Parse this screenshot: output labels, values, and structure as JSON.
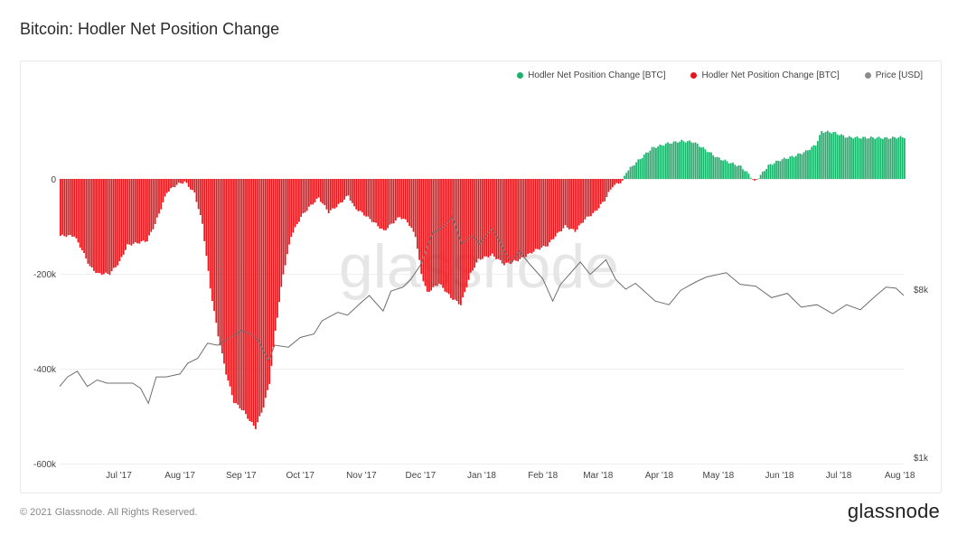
{
  "title": "Bitcoin: Hodler Net Position Change",
  "legend": {
    "positive": {
      "label": "Hodler Net Position Change [BTC]",
      "color": "#1bb36c"
    },
    "negative": {
      "label": "Hodler Net Position Change [BTC]",
      "color": "#e8151b"
    },
    "price": {
      "label": "Price [USD]",
      "color": "#8c8c8c"
    }
  },
  "watermark": "glassnode",
  "footer": "© 2021 Glassnode. All Rights Reserved.",
  "brand": "glassnode",
  "chart_data": {
    "type": "bar",
    "x_start": "2017-06-01",
    "x_end": "2018-08-03",
    "x_ticks": [
      {
        "label": "Jul '17",
        "date": "2017-07-01"
      },
      {
        "label": "Aug '17",
        "date": "2017-08-01"
      },
      {
        "label": "Sep '17",
        "date": "2017-09-01"
      },
      {
        "label": "Oct '17",
        "date": "2017-10-01"
      },
      {
        "label": "Nov '17",
        "date": "2017-11-01"
      },
      {
        "label": "Dec '17",
        "date": "2017-12-01"
      },
      {
        "label": "Jan '18",
        "date": "2018-01-01"
      },
      {
        "label": "Feb '18",
        "date": "2018-02-01"
      },
      {
        "label": "Mar '18",
        "date": "2018-03-01"
      },
      {
        "label": "Apr '18",
        "date": "2018-04-01"
      },
      {
        "label": "May '18",
        "date": "2018-05-01"
      },
      {
        "label": "Jun '18",
        "date": "2018-06-01"
      },
      {
        "label": "Jul '18",
        "date": "2018-07-01"
      },
      {
        "label": "Aug '18",
        "date": "2018-08-01"
      }
    ],
    "y_left": {
      "ticks": [
        0,
        -200000,
        -400000,
        -600000
      ],
      "tick_labels": [
        "0",
        "-200k",
        "-400k",
        "-600k"
      ],
      "range": [
        -600000,
        100000
      ]
    },
    "y_right": {
      "scale": "log",
      "ticks": [
        8000,
        1000
      ],
      "tick_labels": [
        "$8k",
        "$1k"
      ],
      "range": [
        1000,
        40000
      ]
    },
    "grid": true,
    "legend_position": "top-right",
    "series": [
      {
        "name": "Hodler Net Position Change [BTC]",
        "type": "bar",
        "points": [
          [
            "2017-06-01",
            -120000
          ],
          [
            "2017-06-08",
            -120000
          ],
          [
            "2017-06-12",
            -150000
          ],
          [
            "2017-06-16",
            -185000
          ],
          [
            "2017-06-20",
            -200000
          ],
          [
            "2017-06-26",
            -200000
          ],
          [
            "2017-07-01",
            -175000
          ],
          [
            "2017-07-05",
            -140000
          ],
          [
            "2017-07-15",
            -130000
          ],
          [
            "2017-07-19",
            -95000
          ],
          [
            "2017-07-25",
            -28000
          ],
          [
            "2017-07-30",
            -12000
          ],
          [
            "2017-08-03",
            -6000
          ],
          [
            "2017-08-08",
            -30000
          ],
          [
            "2017-08-12",
            -95000
          ],
          [
            "2017-08-16",
            -230000
          ],
          [
            "2017-08-20",
            -330000
          ],
          [
            "2017-08-24",
            -410000
          ],
          [
            "2017-08-28",
            -470000
          ],
          [
            "2017-09-02",
            -490000
          ],
          [
            "2017-09-05",
            -510000
          ],
          [
            "2017-09-08",
            -525000
          ],
          [
            "2017-09-12",
            -480000
          ],
          [
            "2017-09-15",
            -430000
          ],
          [
            "2017-09-18",
            -320000
          ],
          [
            "2017-09-22",
            -200000
          ],
          [
            "2017-09-26",
            -120000
          ],
          [
            "2017-10-01",
            -80000
          ],
          [
            "2017-10-05",
            -60000
          ],
          [
            "2017-10-10",
            -40000
          ],
          [
            "2017-10-15",
            -70000
          ],
          [
            "2017-10-20",
            -55000
          ],
          [
            "2017-10-25",
            -35000
          ],
          [
            "2017-10-28",
            -60000
          ],
          [
            "2017-11-02",
            -75000
          ],
          [
            "2017-11-08",
            -95000
          ],
          [
            "2017-11-12",
            -110000
          ],
          [
            "2017-11-16",
            -95000
          ],
          [
            "2017-11-20",
            -80000
          ],
          [
            "2017-11-24",
            -90000
          ],
          [
            "2017-11-28",
            -120000
          ],
          [
            "2017-12-01",
            -200000
          ],
          [
            "2017-12-04",
            -240000
          ],
          [
            "2017-12-10",
            -220000
          ],
          [
            "2017-12-16",
            -250000
          ],
          [
            "2017-12-21",
            -265000
          ],
          [
            "2017-12-26",
            -200000
          ],
          [
            "2017-12-30",
            -170000
          ],
          [
            "2018-01-06",
            -160000
          ],
          [
            "2018-01-12",
            -180000
          ],
          [
            "2018-01-20",
            -170000
          ],
          [
            "2018-01-28",
            -150000
          ],
          [
            "2018-02-03",
            -140000
          ],
          [
            "2018-02-07",
            -120000
          ],
          [
            "2018-02-12",
            -100000
          ],
          [
            "2018-02-17",
            -110000
          ],
          [
            "2018-02-22",
            -85000
          ],
          [
            "2018-02-27",
            -70000
          ],
          [
            "2018-03-04",
            -45000
          ],
          [
            "2018-03-08",
            -15000
          ],
          [
            "2018-03-13",
            -5000
          ],
          [
            "2018-03-15",
            15000
          ],
          [
            "2018-03-20",
            35000
          ],
          [
            "2018-03-28",
            65000
          ],
          [
            "2018-04-05",
            75000
          ],
          [
            "2018-04-12",
            80000
          ],
          [
            "2018-04-18",
            78000
          ],
          [
            "2018-04-24",
            62000
          ],
          [
            "2018-04-30",
            45000
          ],
          [
            "2018-05-06",
            35000
          ],
          [
            "2018-05-12",
            26000
          ],
          [
            "2018-05-16",
            10000
          ],
          [
            "2018-05-19",
            -6000
          ],
          [
            "2018-05-22",
            8000
          ],
          [
            "2018-05-26",
            28000
          ],
          [
            "2018-06-01",
            40000
          ],
          [
            "2018-06-08",
            48000
          ],
          [
            "2018-06-14",
            58000
          ],
          [
            "2018-06-19",
            72000
          ],
          [
            "2018-06-22",
            100000
          ],
          [
            "2018-06-28",
            98000
          ],
          [
            "2018-07-05",
            88000
          ],
          [
            "2018-07-12",
            87000
          ],
          [
            "2018-07-18",
            87000
          ],
          [
            "2018-07-25",
            86000
          ],
          [
            "2018-08-01",
            88000
          ],
          [
            "2018-08-03",
            88000
          ]
        ]
      },
      {
        "name": "Price [USD]",
        "type": "line",
        "points": [
          [
            "2017-06-01",
            2400
          ],
          [
            "2017-06-05",
            2700
          ],
          [
            "2017-06-10",
            2900
          ],
          [
            "2017-06-15",
            2400
          ],
          [
            "2017-06-20",
            2600
          ],
          [
            "2017-06-25",
            2500
          ],
          [
            "2017-07-01",
            2500
          ],
          [
            "2017-07-08",
            2500
          ],
          [
            "2017-07-12",
            2350
          ],
          [
            "2017-07-16",
            1950
          ],
          [
            "2017-07-20",
            2700
          ],
          [
            "2017-07-25",
            2700
          ],
          [
            "2017-08-01",
            2800
          ],
          [
            "2017-08-05",
            3200
          ],
          [
            "2017-08-10",
            3400
          ],
          [
            "2017-08-15",
            4100
          ],
          [
            "2017-08-20",
            4000
          ],
          [
            "2017-08-25",
            4300
          ],
          [
            "2017-09-01",
            4800
          ],
          [
            "2017-09-06",
            4600
          ],
          [
            "2017-09-10",
            4200
          ],
          [
            "2017-09-15",
            3300
          ],
          [
            "2017-09-18",
            4000
          ],
          [
            "2017-09-25",
            3900
          ],
          [
            "2017-10-01",
            4400
          ],
          [
            "2017-10-08",
            4600
          ],
          [
            "2017-10-12",
            5400
          ],
          [
            "2017-10-16",
            5700
          ],
          [
            "2017-10-20",
            6000
          ],
          [
            "2017-10-25",
            5800
          ],
          [
            "2017-11-01",
            6800
          ],
          [
            "2017-11-05",
            7400
          ],
          [
            "2017-11-12",
            6100
          ],
          [
            "2017-11-16",
            7800
          ],
          [
            "2017-11-22",
            8200
          ],
          [
            "2017-11-26",
            9000
          ],
          [
            "2017-12-01",
            10800
          ],
          [
            "2017-12-07",
            16000
          ],
          [
            "2017-12-12",
            17000
          ],
          [
            "2017-12-17",
            19500
          ],
          [
            "2017-12-22",
            14000
          ],
          [
            "2017-12-27",
            15500
          ],
          [
            "2017-12-31",
            14000
          ],
          [
            "2018-01-06",
            17000
          ],
          [
            "2018-01-10",
            14500
          ],
          [
            "2018-01-16",
            11000
          ],
          [
            "2018-01-20",
            12800
          ],
          [
            "2018-01-25",
            11000
          ],
          [
            "2018-02-01",
            9100
          ],
          [
            "2018-02-06",
            6900
          ],
          [
            "2018-02-10",
            8500
          ],
          [
            "2018-02-20",
            11200
          ],
          [
            "2018-02-25",
            9600
          ],
          [
            "2018-03-05",
            11500
          ],
          [
            "2018-03-10",
            9000
          ],
          [
            "2018-03-15",
            8000
          ],
          [
            "2018-03-20",
            8600
          ],
          [
            "2018-03-30",
            6900
          ],
          [
            "2018-04-06",
            6600
          ],
          [
            "2018-04-12",
            7900
          ],
          [
            "2018-04-20",
            8800
          ],
          [
            "2018-04-25",
            9300
          ],
          [
            "2018-05-05",
            9800
          ],
          [
            "2018-05-12",
            8500
          ],
          [
            "2018-05-20",
            8300
          ],
          [
            "2018-05-28",
            7200
          ],
          [
            "2018-06-05",
            7600
          ],
          [
            "2018-06-12",
            6400
          ],
          [
            "2018-06-20",
            6600
          ],
          [
            "2018-06-28",
            5900
          ],
          [
            "2018-07-05",
            6600
          ],
          [
            "2018-07-12",
            6200
          ],
          [
            "2018-07-20",
            7400
          ],
          [
            "2018-07-25",
            8200
          ],
          [
            "2018-07-30",
            8100
          ],
          [
            "2018-08-03",
            7400
          ]
        ]
      }
    ]
  }
}
